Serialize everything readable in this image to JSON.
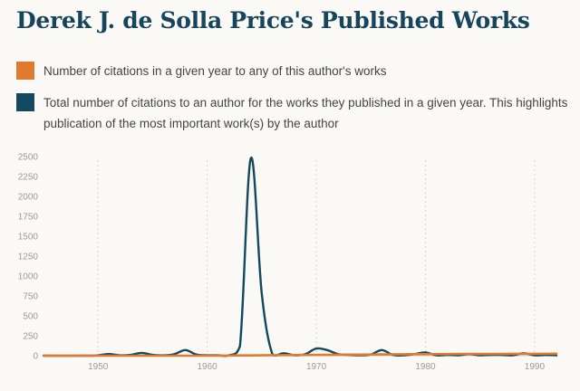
{
  "colors": {
    "background": "#faf9f5",
    "title": "#17455b",
    "orange": "#e07a2e",
    "navy": "#13485e",
    "grid": "#d6d6d6"
  },
  "title": "Derek J. de Solla Price's Published Works",
  "legend": [
    {
      "color": "#e07a2e",
      "text": "Number of citations in a given year to any of this author's works"
    },
    {
      "color": "#13485e",
      "text": "Total number of citations to an author for the works they published in a given year. This highlights publication of the most important work(s) by the author"
    }
  ],
  "chart_data": {
    "type": "line",
    "title": "",
    "xlabel": "",
    "ylabel": "",
    "xlim": [
      1945,
      1992
    ],
    "ylim": [
      0,
      2500
    ],
    "x_ticks": [
      1950,
      1960,
      1970,
      1980,
      1990
    ],
    "y_ticks": [
      0,
      250,
      500,
      750,
      1000,
      1250,
      1500,
      1750,
      2000,
      2250,
      2500
    ],
    "grid": "vertical-dotted",
    "legend_position": "top",
    "series": [
      {
        "name": "Number of citations in a given year to any of this author's works",
        "color": "#e07a2e",
        "x": [
          1945,
          1950,
          1955,
          1960,
          1962,
          1964,
          1966,
          1968,
          1970,
          1972,
          1974,
          1976,
          1978,
          1980,
          1982,
          1984,
          1986,
          1988,
          1990,
          1992
        ],
        "y": [
          0,
          0,
          0,
          0,
          2,
          4,
          6,
          8,
          10,
          12,
          14,
          16,
          18,
          20,
          21,
          22,
          22,
          23,
          24,
          25
        ]
      },
      {
        "name": "Total number of citations to an author for the works they published in a given year. This highlights publication of the most important work(s) by the author",
        "color": "#13485e",
        "x": [
          1945,
          1949,
          1950,
          1951,
          1952,
          1953,
          1954,
          1955,
          1956,
          1957,
          1958,
          1959,
          1960,
          1961,
          1962,
          1963,
          1964,
          1965,
          1966,
          1967,
          1968,
          1969,
          1970,
          1971,
          1972,
          1973,
          1974,
          1975,
          1976,
          1977,
          1978,
          1979,
          1980,
          1981,
          1982,
          1983,
          1984,
          1985,
          1986,
          1987,
          1988,
          1989,
          1990,
          1991,
          1992
        ],
        "y": [
          0,
          0,
          5,
          20,
          5,
          10,
          35,
          10,
          5,
          20,
          70,
          15,
          5,
          5,
          5,
          120,
          2480,
          780,
          10,
          30,
          5,
          20,
          90,
          70,
          20,
          10,
          5,
          15,
          70,
          10,
          5,
          20,
          40,
          5,
          10,
          5,
          20,
          5,
          10,
          10,
          5,
          30,
          5,
          10,
          5
        ]
      }
    ]
  }
}
